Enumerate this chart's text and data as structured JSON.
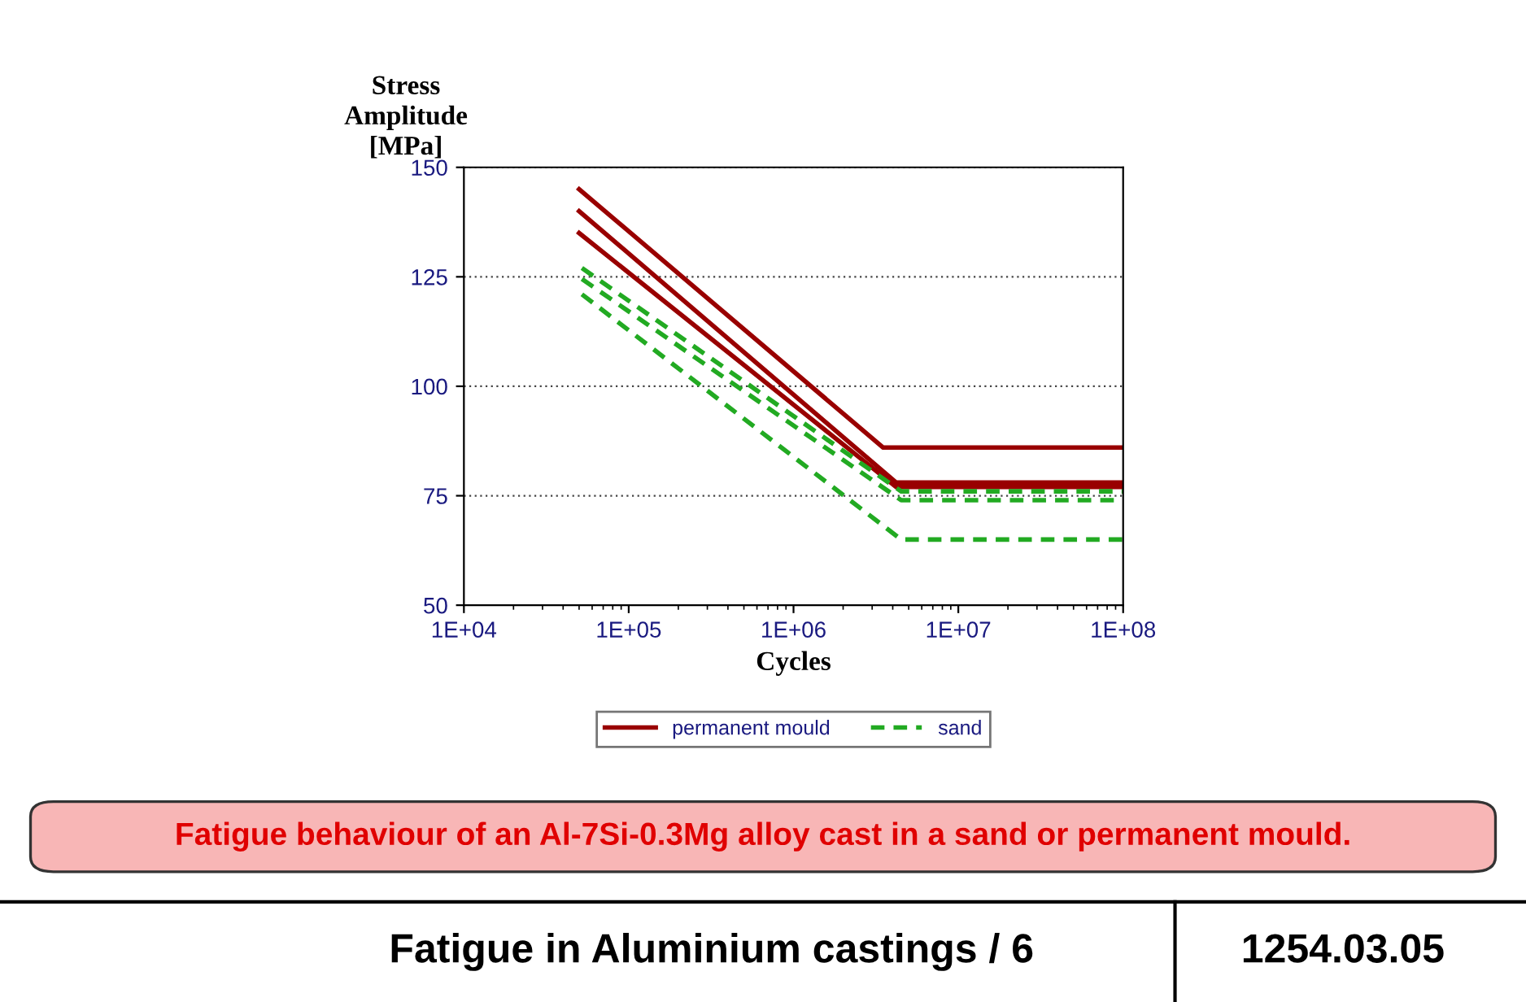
{
  "chart_data": {
    "type": "line",
    "xlabel": "Cycles",
    "ylabel": "Stress\nAmplitude\n[MPa]",
    "log": "x",
    "xlim": [
      10000,
      100000000
    ],
    "ylim": [
      50,
      150
    ],
    "xticks": [
      {
        "value": 10000,
        "label": "1E+04"
      },
      {
        "value": 100000,
        "label": "1E+05"
      },
      {
        "value": 1000000,
        "label": "1E+06"
      },
      {
        "value": 10000000,
        "label": "1E+07"
      },
      {
        "value": 100000000,
        "label": "1E+08"
      }
    ],
    "yticks": [
      50,
      75,
      100,
      125,
      150
    ],
    "grid": "y",
    "legend": "bottom",
    "marker": "none",
    "series": [
      {
        "name": "permanent mould",
        "color": "#990000",
        "line_style": "solid",
        "x": [
          50000,
          3500000,
          100000000
        ],
        "values": [
          145,
          86,
          86
        ]
      },
      {
        "color": "#990000",
        "line_style": "solid",
        "x": [
          50000,
          4200000,
          100000000
        ],
        "values": [
          140,
          78,
          78
        ]
      },
      {
        "color": "#990000",
        "line_style": "solid",
        "x": [
          50000,
          4200000,
          100000000
        ],
        "values": [
          135,
          77,
          77
        ]
      },
      {
        "name": "sand",
        "color": "#22aa22",
        "line_style": "dashed",
        "x": [
          52000,
          4500000,
          100000000
        ],
        "values": [
          127,
          76,
          76
        ]
      },
      {
        "color": "#22aa22",
        "line_style": "dashed",
        "x": [
          52000,
          4500000,
          100000000
        ],
        "values": [
          124.5,
          74,
          74
        ]
      },
      {
        "color": "#22aa22",
        "line_style": "dashed",
        "x": [
          52000,
          4500000,
          100000000
        ],
        "values": [
          121,
          65,
          65
        ]
      }
    ],
    "annotations": [
      "Fatigue behaviour of an Al-7Si-0.3Mg alloy cast in a sand or permanent mould.",
      "Fatigue in Aluminium castings / 6",
      "1254.03.05"
    ]
  }
}
